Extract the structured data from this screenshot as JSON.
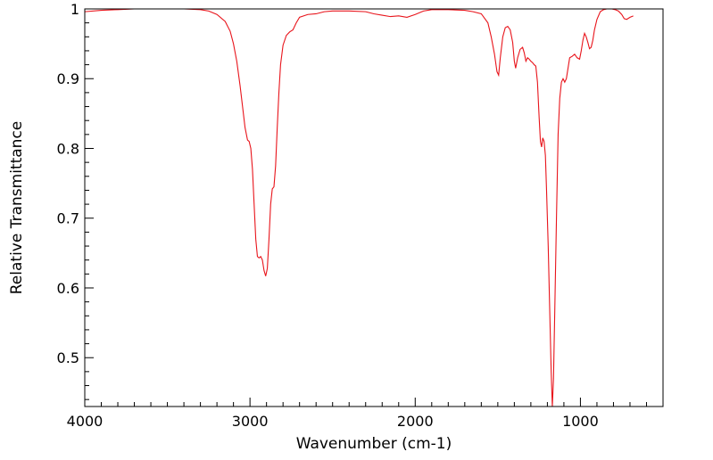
{
  "chart_data": {
    "type": "line",
    "title": "",
    "xlabel": "Wavenumber (cm-1)",
    "ylabel": "Relative Transmittance",
    "xlim": [
      4000,
      500
    ],
    "ylim": [
      0.43,
      1.0
    ],
    "x_reversed": true,
    "grid": false,
    "legend": "none",
    "x_ticks": [
      {
        "value": 4000,
        "label": "4000"
      },
      {
        "value": 3000,
        "label": "3000"
      },
      {
        "value": 2000,
        "label": "2000"
      },
      {
        "value": 1000,
        "label": "1000"
      }
    ],
    "y_ticks": [
      {
        "value": 1.0,
        "label": "1"
      },
      {
        "value": 0.9,
        "label": "0.9"
      },
      {
        "value": 0.8,
        "label": "0.8"
      },
      {
        "value": 0.7,
        "label": "0.7"
      },
      {
        "value": 0.6,
        "label": "0.6"
      },
      {
        "value": 0.5,
        "label": "0.5"
      }
    ],
    "series": [
      {
        "color": "#e8141b",
        "points": [
          [
            4000,
            0.996
          ],
          [
            3900,
            0.998
          ],
          [
            3800,
            0.999
          ],
          [
            3700,
            1.0
          ],
          [
            3600,
            1.0
          ],
          [
            3500,
            1.0
          ],
          [
            3400,
            1.0
          ],
          [
            3300,
            0.999
          ],
          [
            3250,
            0.997
          ],
          [
            3200,
            0.992
          ],
          [
            3150,
            0.982
          ],
          [
            3120,
            0.968
          ],
          [
            3100,
            0.95
          ],
          [
            3080,
            0.925
          ],
          [
            3060,
            0.89
          ],
          [
            3045,
            0.86
          ],
          [
            3030,
            0.83
          ],
          [
            3015,
            0.812
          ],
          [
            3005,
            0.81
          ],
          [
            2995,
            0.8
          ],
          [
            2985,
            0.77
          ],
          [
            2975,
            0.72
          ],
          [
            2965,
            0.67
          ],
          [
            2955,
            0.645
          ],
          [
            2945,
            0.643
          ],
          [
            2935,
            0.645
          ],
          [
            2925,
            0.64
          ],
          [
            2915,
            0.625
          ],
          [
            2905,
            0.617
          ],
          [
            2895,
            0.628
          ],
          [
            2885,
            0.67
          ],
          [
            2875,
            0.72
          ],
          [
            2865,
            0.742
          ],
          [
            2855,
            0.745
          ],
          [
            2845,
            0.775
          ],
          [
            2835,
            0.83
          ],
          [
            2825,
            0.88
          ],
          [
            2815,
            0.92
          ],
          [
            2800,
            0.948
          ],
          [
            2780,
            0.962
          ],
          [
            2760,
            0.967
          ],
          [
            2740,
            0.97
          ],
          [
            2720,
            0.98
          ],
          [
            2700,
            0.988
          ],
          [
            2650,
            0.992
          ],
          [
            2600,
            0.993
          ],
          [
            2550,
            0.996
          ],
          [
            2500,
            0.997
          ],
          [
            2400,
            0.997
          ],
          [
            2300,
            0.996
          ],
          [
            2250,
            0.993
          ],
          [
            2200,
            0.991
          ],
          [
            2150,
            0.989
          ],
          [
            2100,
            0.99
          ],
          [
            2050,
            0.988
          ],
          [
            2000,
            0.992
          ],
          [
            1950,
            0.997
          ],
          [
            1900,
            0.999
          ],
          [
            1800,
            0.999
          ],
          [
            1700,
            0.998
          ],
          [
            1650,
            0.996
          ],
          [
            1600,
            0.993
          ],
          [
            1560,
            0.98
          ],
          [
            1540,
            0.96
          ],
          [
            1520,
            0.935
          ],
          [
            1505,
            0.91
          ],
          [
            1495,
            0.905
          ],
          [
            1485,
            0.93
          ],
          [
            1470,
            0.96
          ],
          [
            1455,
            0.973
          ],
          [
            1440,
            0.975
          ],
          [
            1425,
            0.97
          ],
          [
            1410,
            0.952
          ],
          [
            1400,
            0.925
          ],
          [
            1392,
            0.915
          ],
          [
            1380,
            0.93
          ],
          [
            1365,
            0.942
          ],
          [
            1350,
            0.945
          ],
          [
            1340,
            0.937
          ],
          [
            1330,
            0.925
          ],
          [
            1320,
            0.93
          ],
          [
            1310,
            0.928
          ],
          [
            1300,
            0.925
          ],
          [
            1290,
            0.923
          ],
          [
            1280,
            0.92
          ],
          [
            1270,
            0.918
          ],
          [
            1260,
            0.895
          ],
          [
            1250,
            0.845
          ],
          [
            1242,
            0.81
          ],
          [
            1235,
            0.802
          ],
          [
            1228,
            0.815
          ],
          [
            1220,
            0.81
          ],
          [
            1212,
            0.79
          ],
          [
            1205,
            0.74
          ],
          [
            1195,
            0.66
          ],
          [
            1185,
            0.56
          ],
          [
            1177,
            0.48
          ],
          [
            1170,
            0.43
          ],
          [
            1163,
            0.47
          ],
          [
            1155,
            0.57
          ],
          [
            1145,
            0.7
          ],
          [
            1135,
            0.82
          ],
          [
            1125,
            0.872
          ],
          [
            1115,
            0.895
          ],
          [
            1105,
            0.9
          ],
          [
            1095,
            0.895
          ],
          [
            1085,
            0.9
          ],
          [
            1075,
            0.915
          ],
          [
            1065,
            0.93
          ],
          [
            1050,
            0.932
          ],
          [
            1035,
            0.935
          ],
          [
            1020,
            0.93
          ],
          [
            1005,
            0.928
          ],
          [
            995,
            0.94
          ],
          [
            985,
            0.955
          ],
          [
            975,
            0.965
          ],
          [
            965,
            0.96
          ],
          [
            955,
            0.952
          ],
          [
            945,
            0.943
          ],
          [
            935,
            0.945
          ],
          [
            925,
            0.955
          ],
          [
            915,
            0.97
          ],
          [
            900,
            0.985
          ],
          [
            880,
            0.996
          ],
          [
            860,
            0.999
          ],
          [
            840,
            1.0
          ],
          [
            810,
            1.0
          ],
          [
            790,
            0.999
          ],
          [
            770,
            0.997
          ],
          [
            750,
            0.992
          ],
          [
            735,
            0.986
          ],
          [
            720,
            0.985
          ],
          [
            700,
            0.988
          ],
          [
            680,
            0.99
          ]
        ]
      }
    ]
  }
}
